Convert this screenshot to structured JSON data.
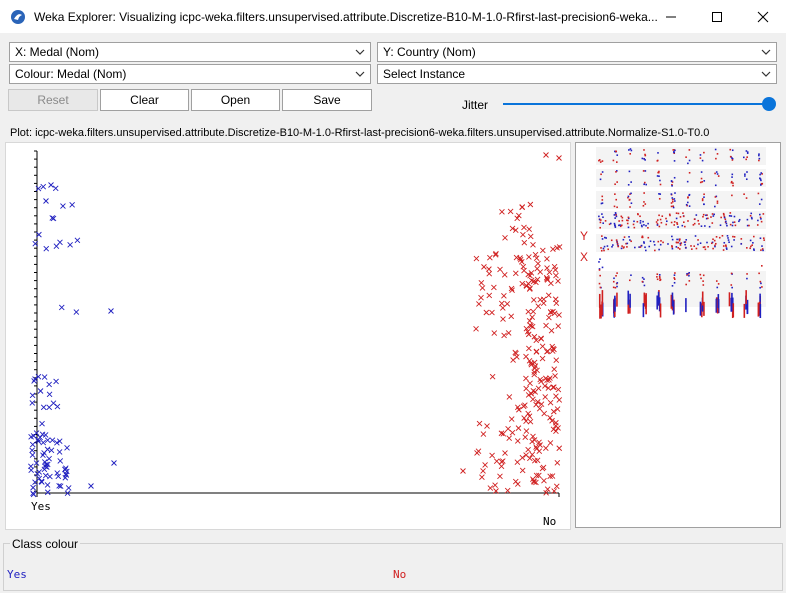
{
  "window": {
    "title": "Weka Explorer: Visualizing icpc-weka.filters.unsupervised.attribute.Discretize-B10-M-1.0-Rfirst-last-precision6-weka...",
    "icon": "weka-bird-icon"
  },
  "controls": {
    "x_axis": "X: Medal (Nom)",
    "y_axis": "Y: Country (Nom)",
    "colour": "Colour: Medal (Nom)",
    "instance": "Select Instance"
  },
  "buttons": {
    "reset": "Reset",
    "clear": "Clear",
    "open": "Open",
    "save": "Save"
  },
  "jitter": {
    "label": "Jitter",
    "value": 1.0
  },
  "plot": {
    "title": "Plot: icpc-weka.filters.unsupervised.attribute.Discretize-B10-M-1.0-Rfirst-last-precision6-weka.filters.unsupervised.attribute.Normalize-S1.0-T0.0",
    "x_labels": [
      "Yes",
      "No"
    ],
    "colors": {
      "Yes": "#2020c0",
      "No": "#d02020"
    }
  },
  "chart_data": {
    "type": "scatter",
    "categories": [
      "Yes",
      "No"
    ],
    "series": [
      {
        "name": "Yes",
        "points": 90
      },
      {
        "name": "No",
        "points": 260
      }
    ]
  },
  "matrix": {
    "axis_marks": [
      "Y",
      "X"
    ]
  },
  "class_colour": {
    "title": "Class colour",
    "items": [
      "Yes",
      "No"
    ]
  }
}
